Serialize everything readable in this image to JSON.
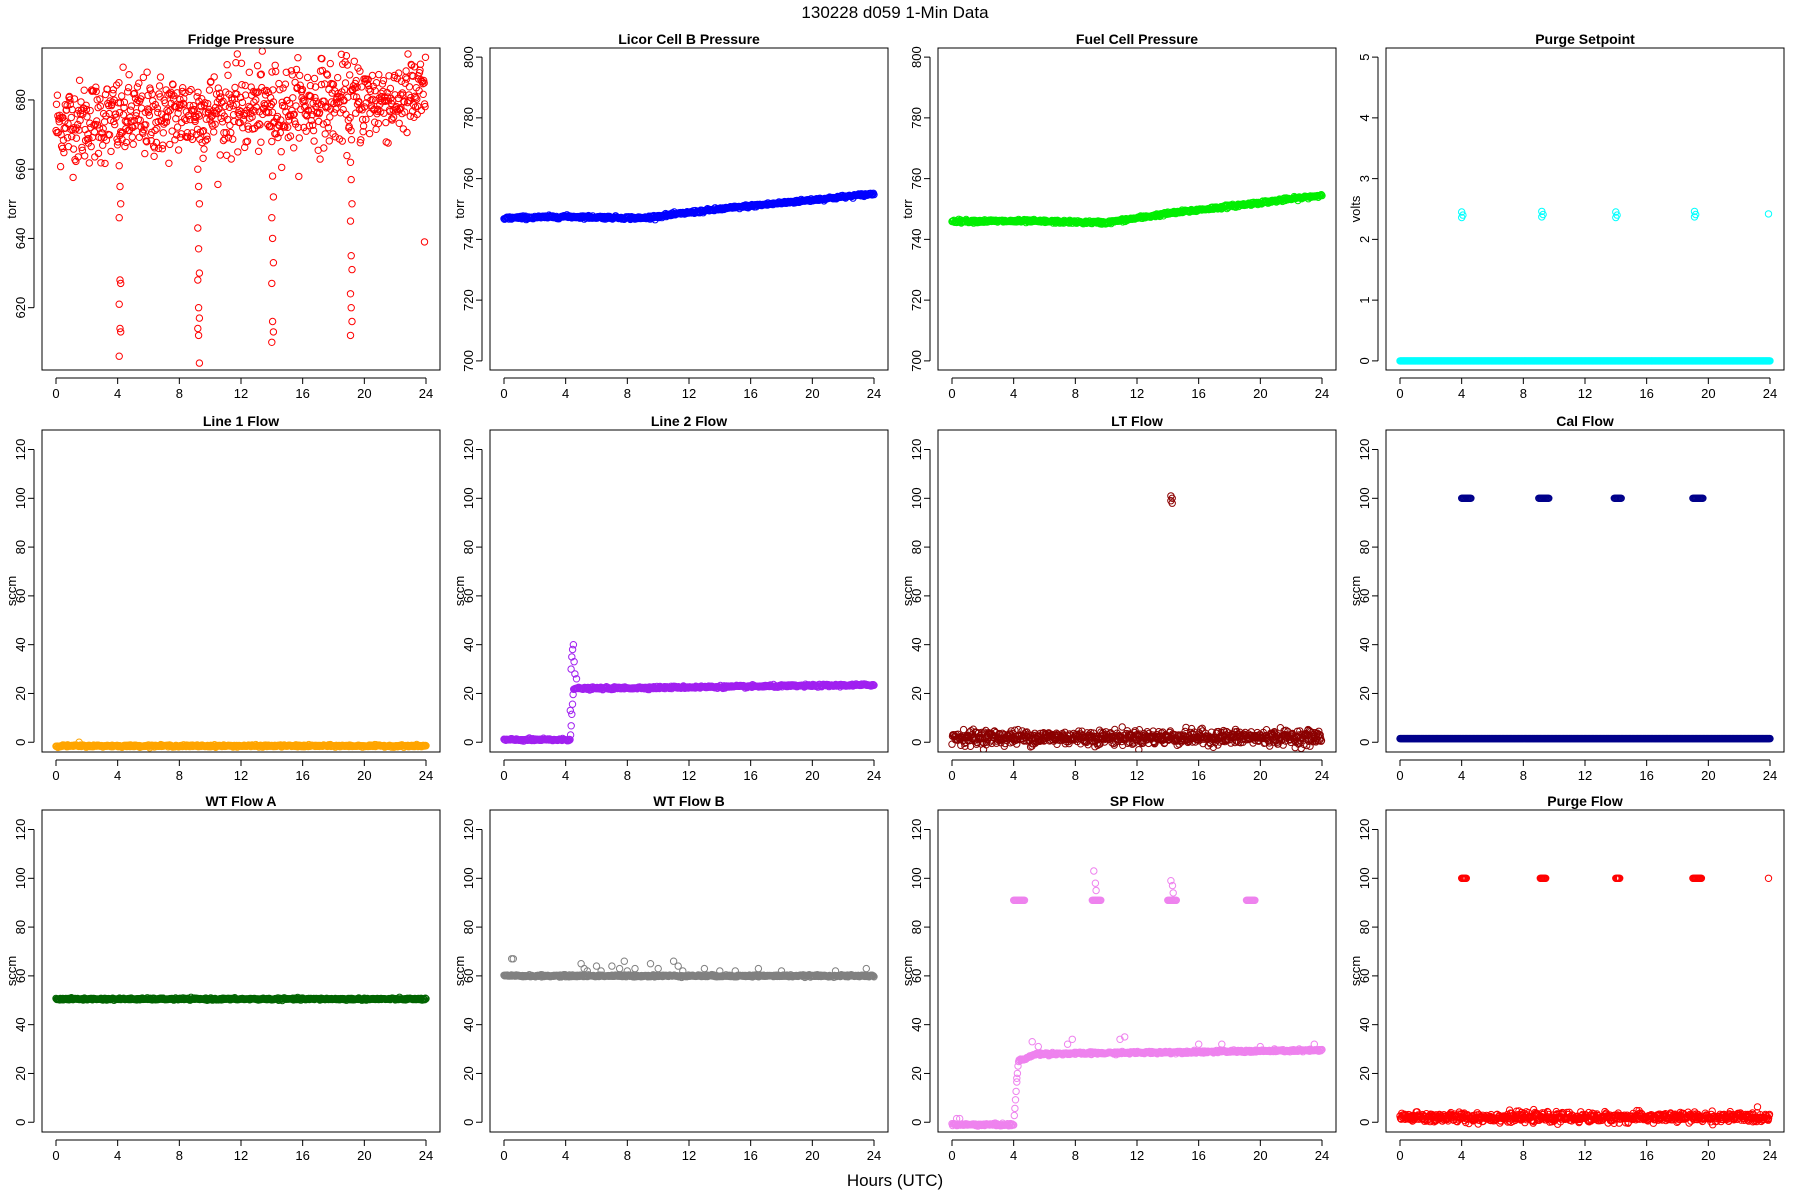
{
  "figure": {
    "title": "130228   d059   1-Min Data",
    "xlabel": "Hours (UTC)"
  },
  "chart_data": [
    {
      "type": "scatter",
      "title": "Fridge Pressure",
      "ylabel": "torr",
      "color": "#ff0000",
      "xlim": [
        0,
        24
      ],
      "ylim": [
        602,
        695
      ],
      "yticks": [
        620,
        640,
        660,
        680
      ],
      "xticks": [
        0,
        4,
        8,
        12,
        16,
        20,
        24
      ],
      "pattern": "noise_drops",
      "base": 673,
      "trend": 8,
      "noise": 6,
      "drops": [
        {
          "x": 4.1,
          "values": [
            661,
            655,
            650,
            646,
            628,
            627,
            621,
            614,
            613,
            606
          ]
        },
        {
          "x": 9.2,
          "values": [
            660,
            655,
            650,
            643,
            637,
            630,
            628,
            620,
            617,
            614,
            612,
            604
          ]
        },
        {
          "x": 14.0,
          "values": [
            668,
            658,
            652,
            646,
            640,
            633,
            627,
            616,
            613,
            610
          ]
        },
        {
          "x": 19.1,
          "values": [
            662,
            657,
            650,
            645,
            635,
            631,
            624,
            620,
            616,
            612
          ]
        }
      ],
      "outliers": [
        {
          "x": 17.2,
          "y": 692
        },
        {
          "x": 23.9,
          "y": 639
        }
      ]
    },
    {
      "type": "scatter",
      "title": "Licor Cell B Pressure",
      "ylabel": "torr",
      "color": "#0000ff",
      "xlim": [
        0,
        24
      ],
      "ylim": [
        697,
        803
      ],
      "yticks": [
        700,
        720,
        740,
        760,
        780,
        800
      ],
      "xticks": [
        0,
        4,
        8,
        12,
        16,
        20,
        24
      ],
      "pattern": "line",
      "line": [
        [
          0,
          747
        ],
        [
          4,
          747.5
        ],
        [
          9,
          747
        ],
        [
          14,
          750
        ],
        [
          19,
          752.5
        ],
        [
          24,
          755
        ]
      ]
    },
    {
      "type": "scatter",
      "title": "Fuel Cell Pressure",
      "ylabel": "torr",
      "color": "#00ee00",
      "xlim": [
        0,
        24
      ],
      "ylim": [
        697,
        803
      ],
      "yticks": [
        700,
        720,
        740,
        760,
        780,
        800
      ],
      "xticks": [
        0,
        4,
        8,
        12,
        16,
        20,
        24
      ],
      "pattern": "line",
      "line": [
        [
          0,
          746
        ],
        [
          5,
          746
        ],
        [
          10,
          745.5
        ],
        [
          14,
          748.5
        ],
        [
          19,
          751.5
        ],
        [
          24,
          754.5
        ]
      ]
    },
    {
      "type": "scatter",
      "title": "Purge Setpoint",
      "ylabel": "volts",
      "color": "#00ffff",
      "xlim": [
        0,
        24
      ],
      "ylim": [
        -0.15,
        5.15
      ],
      "yticks": [
        0,
        1,
        2,
        3,
        4,
        5
      ],
      "xticks": [
        0,
        4,
        8,
        12,
        16,
        20,
        24
      ],
      "pattern": "flat_spikes",
      "base": 0,
      "spikes": [
        {
          "x": 4.0,
          "values": [
            2.45,
            2.4,
            2.36
          ]
        },
        {
          "x": 9.2,
          "values": [
            2.46,
            2.41,
            2.37
          ]
        },
        {
          "x": 14.0,
          "values": [
            2.45,
            2.4,
            2.36
          ]
        },
        {
          "x": 19.1,
          "values": [
            2.46,
            2.41,
            2.37
          ]
        },
        {
          "x": 23.9,
          "values": [
            2.42
          ]
        }
      ]
    },
    {
      "type": "scatter",
      "title": "Line 1 Flow",
      "ylabel": "sccm",
      "color": "#ffa500",
      "xlim": [
        0,
        24
      ],
      "ylim": [
        -4,
        128
      ],
      "yticks": [
        0,
        20,
        40,
        60,
        80,
        100,
        120
      ],
      "xticks": [
        0,
        4,
        8,
        12,
        16,
        20,
        24
      ],
      "pattern": "flat",
      "base": -1.5,
      "outliers": [
        {
          "x": 1.5,
          "y": 0
        }
      ]
    },
    {
      "type": "scatter",
      "title": "Line 2 Flow",
      "ylabel": "sccm",
      "color": "#a020f0",
      "xlim": [
        0,
        24
      ],
      "ylim": [
        -4,
        128
      ],
      "yticks": [
        0,
        20,
        40,
        60,
        80,
        100,
        120
      ],
      "xticks": [
        0,
        4,
        8,
        12,
        16,
        20,
        24
      ],
      "pattern": "line",
      "line": [
        [
          0,
          1
        ],
        [
          4.3,
          1
        ],
        [
          4.5,
          22
        ],
        [
          5,
          22
        ],
        [
          24,
          23.5
        ]
      ],
      "outliers": [
        {
          "x": 4.3,
          "y": 13
        },
        {
          "x": 4.35,
          "y": 30
        },
        {
          "x": 4.4,
          "y": 35
        },
        {
          "x": 4.45,
          "y": 38
        },
        {
          "x": 4.5,
          "y": 40
        },
        {
          "x": 4.55,
          "y": 33
        },
        {
          "x": 4.6,
          "y": 28
        },
        {
          "x": 4.7,
          "y": 26
        }
      ]
    },
    {
      "type": "scatter",
      "title": "LT Flow",
      "ylabel": "sccm",
      "color": "#8b0000",
      "xlim": [
        0,
        24
      ],
      "ylim": [
        -4,
        128
      ],
      "yticks": [
        0,
        20,
        40,
        60,
        80,
        100,
        120
      ],
      "xticks": [
        0,
        4,
        8,
        12,
        16,
        20,
        24
      ],
      "pattern": "noise_flat",
      "base": 2,
      "noise": 1.5,
      "spikes": [
        {
          "x": 14.2,
          "values": [
            101,
            100,
            99,
            98
          ]
        }
      ]
    },
    {
      "type": "scatter",
      "title": "Cal Flow",
      "ylabel": "sccm",
      "color": "#00008b",
      "xlim": [
        0,
        24
      ],
      "ylim": [
        -4,
        128
      ],
      "yticks": [
        0,
        20,
        40,
        60,
        80,
        100,
        120
      ],
      "xticks": [
        0,
        4,
        8,
        12,
        16,
        20,
        24
      ],
      "pattern": "flat_segments",
      "base": 1.5,
      "segments": [
        {
          "x0": 4.0,
          "x1": 4.6,
          "y": 100
        },
        {
          "x0": 9.0,
          "x1": 9.7,
          "y": 100
        },
        {
          "x0": 13.9,
          "x1": 14.4,
          "y": 100
        },
        {
          "x0": 19.0,
          "x1": 19.7,
          "y": 100
        }
      ]
    },
    {
      "type": "scatter",
      "title": "WT Flow A",
      "ylabel": "sccm",
      "color": "#006400",
      "xlim": [
        0,
        24
      ],
      "ylim": [
        -4,
        128
      ],
      "yticks": [
        0,
        20,
        40,
        60,
        80,
        100,
        120
      ],
      "xticks": [
        0,
        4,
        8,
        12,
        16,
        20,
        24
      ],
      "pattern": "flat",
      "base": 50.5
    },
    {
      "type": "scatter",
      "title": "WT Flow B",
      "ylabel": "sccm",
      "color": "#808080",
      "xlim": [
        0,
        24
      ],
      "ylim": [
        -4,
        128
      ],
      "yticks": [
        0,
        20,
        40,
        60,
        80,
        100,
        120
      ],
      "xticks": [
        0,
        4,
        8,
        12,
        16,
        20,
        24
      ],
      "pattern": "flat",
      "base": 60,
      "outliers": [
        {
          "x": 0.5,
          "y": 67
        },
        {
          "x": 0.6,
          "y": 67
        },
        {
          "x": 5.0,
          "y": 65
        },
        {
          "x": 5.2,
          "y": 63
        },
        {
          "x": 5.4,
          "y": 62
        },
        {
          "x": 6.0,
          "y": 64
        },
        {
          "x": 6.3,
          "y": 62
        },
        {
          "x": 7.0,
          "y": 64
        },
        {
          "x": 7.5,
          "y": 63
        },
        {
          "x": 7.8,
          "y": 66
        },
        {
          "x": 8.0,
          "y": 62
        },
        {
          "x": 8.5,
          "y": 63
        },
        {
          "x": 9.5,
          "y": 65
        },
        {
          "x": 10.0,
          "y": 63
        },
        {
          "x": 11.0,
          "y": 66
        },
        {
          "x": 11.3,
          "y": 64
        },
        {
          "x": 11.6,
          "y": 62
        },
        {
          "x": 13.0,
          "y": 63
        },
        {
          "x": 14.0,
          "y": 62
        },
        {
          "x": 15.0,
          "y": 62
        },
        {
          "x": 16.5,
          "y": 63
        },
        {
          "x": 18.0,
          "y": 62
        },
        {
          "x": 21.5,
          "y": 62
        },
        {
          "x": 23.5,
          "y": 63
        }
      ]
    },
    {
      "type": "scatter",
      "title": "SP Flow",
      "ylabel": "sccm",
      "color": "#ee82ee",
      "xlim": [
        0,
        24
      ],
      "ylim": [
        -4,
        128
      ],
      "yticks": [
        0,
        20,
        40,
        60,
        80,
        100,
        120
      ],
      "xticks": [
        0,
        4,
        8,
        12,
        16,
        20,
        24
      ],
      "pattern": "line",
      "line": [
        [
          0,
          -1
        ],
        [
          4,
          -1
        ],
        [
          4.3,
          25
        ],
        [
          5.5,
          28
        ],
        [
          24,
          29.5
        ]
      ],
      "segments": [
        {
          "x0": 4.0,
          "x1": 4.7,
          "y": 91
        },
        {
          "x0": 9.1,
          "x1": 9.7,
          "y": 91
        },
        {
          "x0": 14.0,
          "x1": 14.6,
          "y": 91
        },
        {
          "x0": 19.1,
          "x1": 19.7,
          "y": 91
        }
      ],
      "outliers": [
        {
          "x": 0.3,
          "y": 1.5
        },
        {
          "x": 0.5,
          "y": 1.5
        },
        {
          "x": 4.2,
          "y": 18
        },
        {
          "x": 5.2,
          "y": 33
        },
        {
          "x": 5.6,
          "y": 31
        },
        {
          "x": 7.5,
          "y": 32
        },
        {
          "x": 7.8,
          "y": 34
        },
        {
          "x": 9.2,
          "y": 103
        },
        {
          "x": 9.3,
          "y": 98
        },
        {
          "x": 9.35,
          "y": 95
        },
        {
          "x": 10.9,
          "y": 34
        },
        {
          "x": 11.2,
          "y": 35
        },
        {
          "x": 14.2,
          "y": 99
        },
        {
          "x": 14.3,
          "y": 97
        },
        {
          "x": 14.35,
          "y": 94
        },
        {
          "x": 16.0,
          "y": 32
        },
        {
          "x": 17.5,
          "y": 32
        },
        {
          "x": 20.0,
          "y": 31
        },
        {
          "x": 23.5,
          "y": 32
        }
      ]
    },
    {
      "type": "scatter",
      "title": "Purge Flow",
      "ylabel": "sccm",
      "color": "#ff0000",
      "xlim": [
        0,
        24
      ],
      "ylim": [
        -4,
        128
      ],
      "yticks": [
        0,
        20,
        40,
        60,
        80,
        100,
        120
      ],
      "xticks": [
        0,
        4,
        8,
        12,
        16,
        20,
        24
      ],
      "pattern": "noise_flat",
      "base": 2,
      "noise": 1,
      "segments": [
        {
          "x0": 4.0,
          "x1": 4.3,
          "y": 100
        },
        {
          "x0": 9.1,
          "x1": 9.5,
          "y": 100
        },
        {
          "x0": 14.0,
          "x1": 14.3,
          "y": 100
        },
        {
          "x0": 19.0,
          "x1": 19.6,
          "y": 100
        }
      ],
      "outliers": [
        {
          "x": 23.9,
          "y": 100
        }
      ]
    }
  ]
}
